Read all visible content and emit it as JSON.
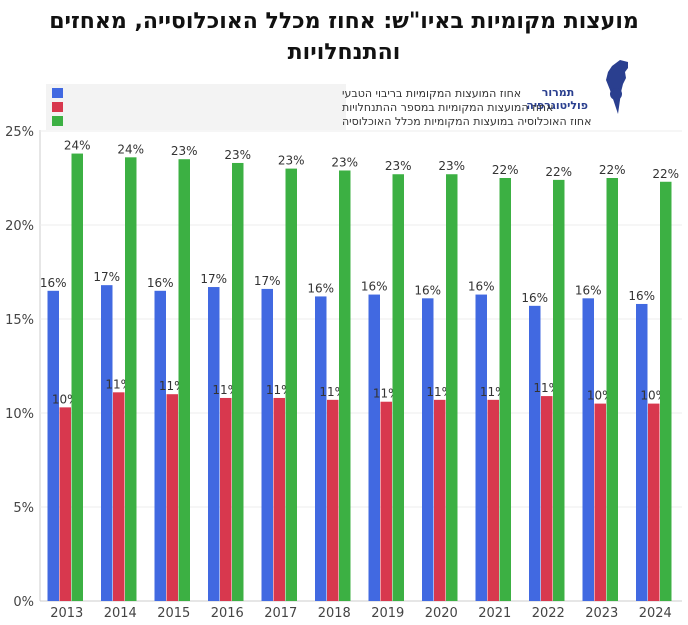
{
  "header": {
    "title": "מועצות מקומיות באיו\"ש: אחוז מכלל האוכלוסייה, מאחזים והתנחלויות"
  },
  "logo": {
    "line1": "תמרור",
    "line2": "פוליטוגרפיה"
  },
  "colors": {
    "blue": "#4169e1",
    "red": "#d8384e",
    "green": "#3cb043",
    "logo": "#2a3f8f"
  },
  "chart_data": {
    "type": "bar",
    "title": "מועצות מקומיות באיו\"ש: אחוז מכלל האוכלוסייה, מאחזים והתנחלויות",
    "categories": [
      "2013",
      "2014",
      "2015",
      "2016",
      "2017",
      "2018",
      "2019",
      "2020",
      "2021",
      "2022",
      "2023",
      "2024"
    ],
    "series": [
      {
        "name": "אחוז המועצות המקומיות בריבוי הטבעי",
        "color": "#4169e1",
        "values": [
          16.5,
          16.8,
          16.5,
          16.7,
          16.6,
          16.2,
          16.3,
          16.1,
          16.3,
          15.7,
          16.1,
          15.8
        ],
        "labels": [
          "16%",
          "17%",
          "16%",
          "17%",
          "17%",
          "16%",
          "16%",
          "16%",
          "16%",
          "16%",
          "16%",
          "16%"
        ]
      },
      {
        "name": "אחוז המועצות המקומיות במספר ההתנחלויות",
        "color": "#d8384e",
        "values": [
          10.3,
          11.1,
          11.0,
          10.8,
          10.8,
          10.7,
          10.6,
          10.7,
          10.7,
          10.9,
          10.5,
          10.5
        ],
        "labels": [
          "10%",
          "11%",
          "11%",
          "11%",
          "11%",
          "11%",
          "11%",
          "11%",
          "11%",
          "11%",
          "10%",
          "10%"
        ]
      },
      {
        "name": "אחוז האוכלוסיה במועצות המקומיות מכלל האוכלוסיה",
        "color": "#3cb043",
        "values": [
          23.8,
          23.6,
          23.5,
          23.3,
          23.0,
          22.9,
          22.7,
          22.7,
          22.5,
          22.4,
          22.5,
          22.3
        ],
        "labels": [
          "24%",
          "24%",
          "23%",
          "23%",
          "23%",
          "23%",
          "23%",
          "23%",
          "22%",
          "22%",
          "22%",
          "22%"
        ]
      }
    ],
    "y_ticks": [
      "0%",
      "5%",
      "10%",
      "15%",
      "20%",
      "25%"
    ],
    "ylim": [
      0,
      25
    ],
    "grid": true,
    "legend_position": "top-left",
    "xlabel": "",
    "ylabel": ""
  }
}
